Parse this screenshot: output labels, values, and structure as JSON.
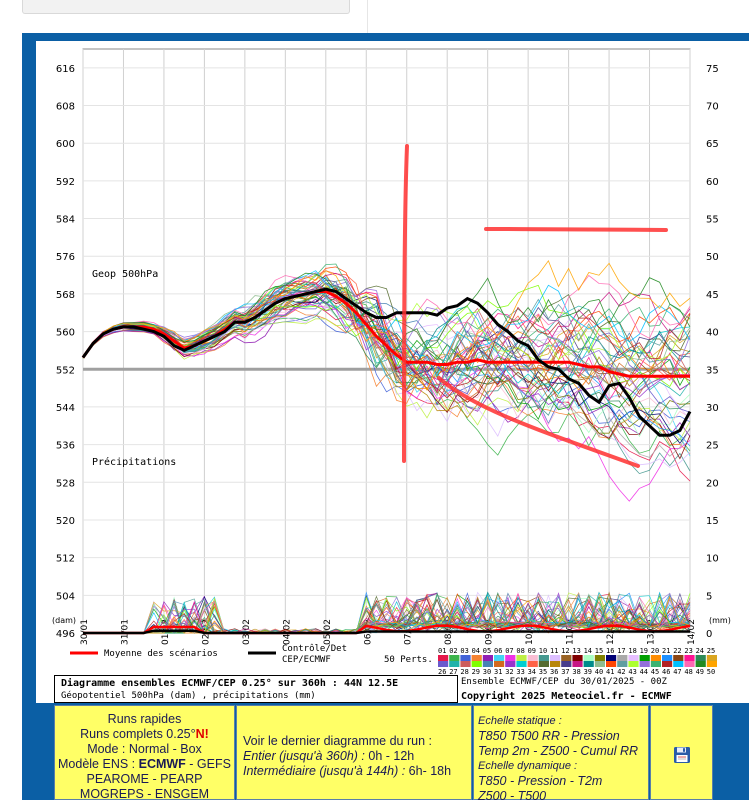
{
  "chart_data": {
    "type": "line",
    "title": "Diagramme ensembles ECMWF/CEP 0.25° sur 360h : 44N 12.5E",
    "subtitle": "Géopotentiel 500hPa (dam) , précipitations (mm)",
    "ensemble_info": "Ensemble ECMWF/CEP du 30/01/2025 - 00Z",
    "copyright": "Copyright 2025 Meteociel.fr - ECMWF",
    "left_axis": {
      "unit": "(dam)",
      "ticks": [
        496,
        504,
        512,
        520,
        528,
        536,
        544,
        552,
        560,
        568,
        576,
        584,
        592,
        600,
        608,
        616
      ],
      "range": [
        496,
        620
      ]
    },
    "right_axis": {
      "unit": "(mm)",
      "ticks": [
        0,
        5,
        10,
        15,
        20,
        25,
        30,
        35,
        40,
        45,
        50,
        55,
        60,
        65,
        70,
        75
      ],
      "range": [
        0,
        77
      ]
    },
    "x_labels": [
      "30/01",
      "31/01",
      "01/02",
      "02/02",
      "03/02",
      "04/02",
      "05/02",
      "06/02",
      "07/02",
      "08/02",
      "09/02",
      "10/02",
      "11/02",
      "12/02",
      "13/02",
      "14/02"
    ],
    "label_geop": "Geop 500hPa",
    "label_precip": "Précipitations",
    "reference_line": 552,
    "legend": {
      "mean": "Moyenne des scénarios",
      "control_1": "Contrôle/Det",
      "control_2": "CEP/ECMWF",
      "perts": "50 Perts.",
      "numbers_row1": [
        "01",
        "02",
        "03",
        "04",
        "05",
        "06",
        "07",
        "08",
        "09",
        "10",
        "11",
        "12",
        "13",
        "14",
        "15",
        "16",
        "17",
        "18",
        "19",
        "20",
        "21",
        "22",
        "23",
        "24",
        "25"
      ],
      "numbers_row2": [
        "26",
        "27",
        "28",
        "29",
        "30",
        "31",
        "32",
        "33",
        "34",
        "35",
        "36",
        "37",
        "38",
        "39",
        "40",
        "41",
        "42",
        "43",
        "44",
        "45",
        "46",
        "47",
        "48",
        "49",
        "50"
      ]
    },
    "series": [
      {
        "name": "Moyenne des scénarios",
        "color": "#ff0000",
        "x": [
          0,
          0.25,
          0.5,
          0.75,
          1,
          1.25,
          1.5,
          1.75,
          2,
          2.25,
          2.5,
          2.75,
          3,
          3.25,
          3.5,
          3.75,
          4,
          4.25,
          4.5,
          4.75,
          5,
          5.25,
          5.5,
          5.75,
          6,
          6.25,
          6.5,
          6.75,
          7,
          7.25,
          7.5,
          7.75,
          8,
          8.25,
          8.5,
          8.75,
          9,
          9.25,
          9.5,
          9.75,
          10,
          10.25,
          10.5,
          10.75,
          11,
          11.25,
          11.5,
          11.75,
          12,
          12.25,
          12.5,
          12.75,
          13,
          13.25,
          13.5,
          13.75,
          14,
          14.25,
          14.5,
          14.75,
          15
        ],
        "y": [
          554.5,
          557.5,
          559.5,
          560.5,
          561,
          561,
          561,
          560.5,
          559.5,
          558,
          556.5,
          557,
          558,
          559,
          560.5,
          562,
          562,
          563,
          564.5,
          566,
          567,
          567.5,
          568,
          568.5,
          568.5,
          567.5,
          566,
          564,
          561.5,
          559,
          557,
          555,
          553.5,
          553.5,
          553.5,
          553,
          553,
          553.5,
          553.5,
          554,
          553.5,
          553.5,
          553.5,
          553.5,
          553.5,
          553.5,
          553.5,
          553.5,
          553.5,
          553,
          552.5,
          552.5,
          551.5,
          551,
          550.5,
          550.5,
          550.5,
          550.5,
          550.5,
          550.5,
          550.5
        ]
      },
      {
        "name": "Contrôle/Det",
        "color": "#000000",
        "x": [
          0,
          0.25,
          0.5,
          0.75,
          1,
          1.25,
          1.5,
          1.75,
          2,
          2.25,
          2.5,
          2.75,
          3,
          3.25,
          3.5,
          3.75,
          4,
          4.25,
          4.5,
          4.75,
          5,
          5.25,
          5.5,
          5.75,
          6,
          6.25,
          6.5,
          6.75,
          7,
          7.25,
          7.5,
          7.75,
          8,
          8.25,
          8.5,
          8.75,
          9,
          9.25,
          9.5,
          9.75,
          10,
          10.25,
          10.5,
          10.75,
          11,
          11.25,
          11.5,
          11.75,
          12,
          12.25,
          12.5,
          12.75,
          13,
          13.25,
          13.5,
          13.75,
          14,
          14.25,
          14.5,
          14.75,
          15
        ],
        "y": [
          554.5,
          557.5,
          559.5,
          560.5,
          561,
          561,
          560.5,
          560,
          559,
          557,
          556,
          557,
          558,
          559,
          560,
          562,
          562,
          563,
          564.5,
          566,
          567,
          567.5,
          568,
          568.5,
          569,
          568.5,
          567,
          565.5,
          564,
          563,
          563,
          564,
          564,
          564,
          564,
          563.5,
          565,
          565.5,
          567,
          566,
          564,
          561.5,
          560,
          558,
          557,
          554,
          552.5,
          552,
          550,
          549,
          546.5,
          545,
          548.5,
          549,
          546,
          542,
          540,
          538,
          538,
          539,
          543
        ]
      }
    ],
    "ensemble_colors": [
      "#e6194b",
      "#3cb44b",
      "#4363d8",
      "#f58231",
      "#911eb4",
      "#42d4f4",
      "#f032e6",
      "#bfef45",
      "#fabed4",
      "#469990",
      "#dcbeff",
      "#9a6324",
      "#800000",
      "#aaffc3",
      "#808000",
      "#000075",
      "#a9a9a9",
      "#e6beff",
      "#00a000",
      "#ff8c00",
      "#1e90ff",
      "#8b4513",
      "#ff1493",
      "#2e8b57",
      "#daa520",
      "#6a5acd",
      "#20b2aa",
      "#cd5c5c",
      "#7fff00",
      "#4682b4",
      "#d2691e",
      "#9932cc",
      "#00ced1",
      "#ff6347",
      "#556b2f",
      "#b8860b",
      "#483d8b",
      "#c71585",
      "#008b8b",
      "#8fbc8f",
      "#ff4500",
      "#5f9ea0",
      "#adff2f",
      "#9370db",
      "#3cb371",
      "#b22222",
      "#00bfff",
      "#ff69b4",
      "#228b22",
      "#ffa500"
    ]
  },
  "panel1": {
    "line1": "Runs rapides",
    "line2a": "Runs complets 0.25°",
    "line2b": "N!",
    "line3": "Mode : Normal - Box",
    "line4a": "Modèle ENS : ",
    "line4b": "ECMWF",
    "line4c": " - GEFS",
    "line5": "PEAROME - PEARP",
    "line6": "MOGREPS - ENSGEM"
  },
  "panel2": {
    "heading": "Voir le dernier diagramme du run :",
    "entier_label": "Entier (jusqu'à 360h) :",
    "entier_value": " 0h - 12h",
    "inter_label": "Intermédiaire (jusqu'à 144h) :",
    "inter_value": " 6h- 18h"
  },
  "panel3": {
    "static_title": "Echelle statique :",
    "static_line1": "T850 T500 RR - Pression",
    "static_line2": "Temp 2m - Z500 - Cumul RR",
    "dyn_title": "Echelle dynamique :",
    "dyn_line1": "T850 - Pression - T2m",
    "dyn_line2": "Z500 - T500"
  },
  "icons": {
    "save": "floppy-disk-icon"
  }
}
